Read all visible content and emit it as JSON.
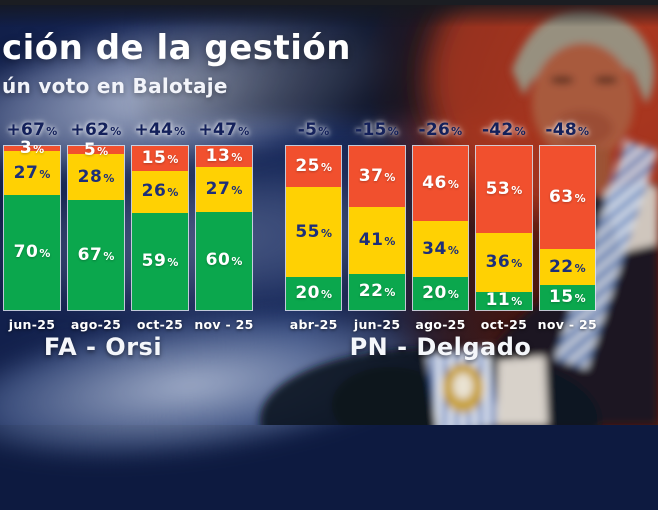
{
  "header": {
    "title": "ción de la gestión",
    "subtitle": "ún voto en Balotaje"
  },
  "chart_data": {
    "type": "bar",
    "stacked": true,
    "unit": "%",
    "ylim": [
      0,
      100
    ],
    "grid": false,
    "legend": "none",
    "segment_order_top_to_bottom": [
      "negative",
      "neutral",
      "positive"
    ],
    "colors": {
      "negative": "#F1502E",
      "neutral": "#FFD103",
      "positive": "#0BA74D",
      "net_label_text": "#13205A",
      "neutral_value_text": "#1D2F7A",
      "background_navy": "#16265A"
    },
    "groups": [
      {
        "label": "FA - Orsi",
        "bars": [
          {
            "category": "jun-25",
            "net_label": "+67%",
            "values": {
              "negative": 3,
              "neutral": 27,
              "positive": 70
            }
          },
          {
            "category": "ago-25",
            "net_label": "+62%",
            "values": {
              "negative": 5,
              "neutral": 28,
              "positive": 67
            }
          },
          {
            "category": "oct-25",
            "net_label": "+44%",
            "values": {
              "negative": 15,
              "neutral": 26,
              "positive": 59
            }
          },
          {
            "category": "nov - 25",
            "net_label": "+47%",
            "values": {
              "negative": 13,
              "neutral": 27,
              "positive": 60
            }
          }
        ]
      },
      {
        "label": "PN - Delgado",
        "bars": [
          {
            "category": "abr-25",
            "net_label": "-5%",
            "values": {
              "negative": 25,
              "neutral": 55,
              "positive": 20
            }
          },
          {
            "category": "jun-25",
            "net_label": "-15%",
            "values": {
              "negative": 37,
              "neutral": 41,
              "positive": 22
            }
          },
          {
            "category": "ago-25",
            "net_label": "-26%",
            "values": {
              "negative": 46,
              "neutral": 34,
              "positive": 20
            }
          },
          {
            "category": "oct-25",
            "net_label": "-42%",
            "values": {
              "negative": 53,
              "neutral": 36,
              "positive": 11
            }
          },
          {
            "category": "nov - 25",
            "net_label": "-48%",
            "values": {
              "negative": 63,
              "neutral": 22,
              "positive": 15
            }
          }
        ]
      }
    ]
  }
}
